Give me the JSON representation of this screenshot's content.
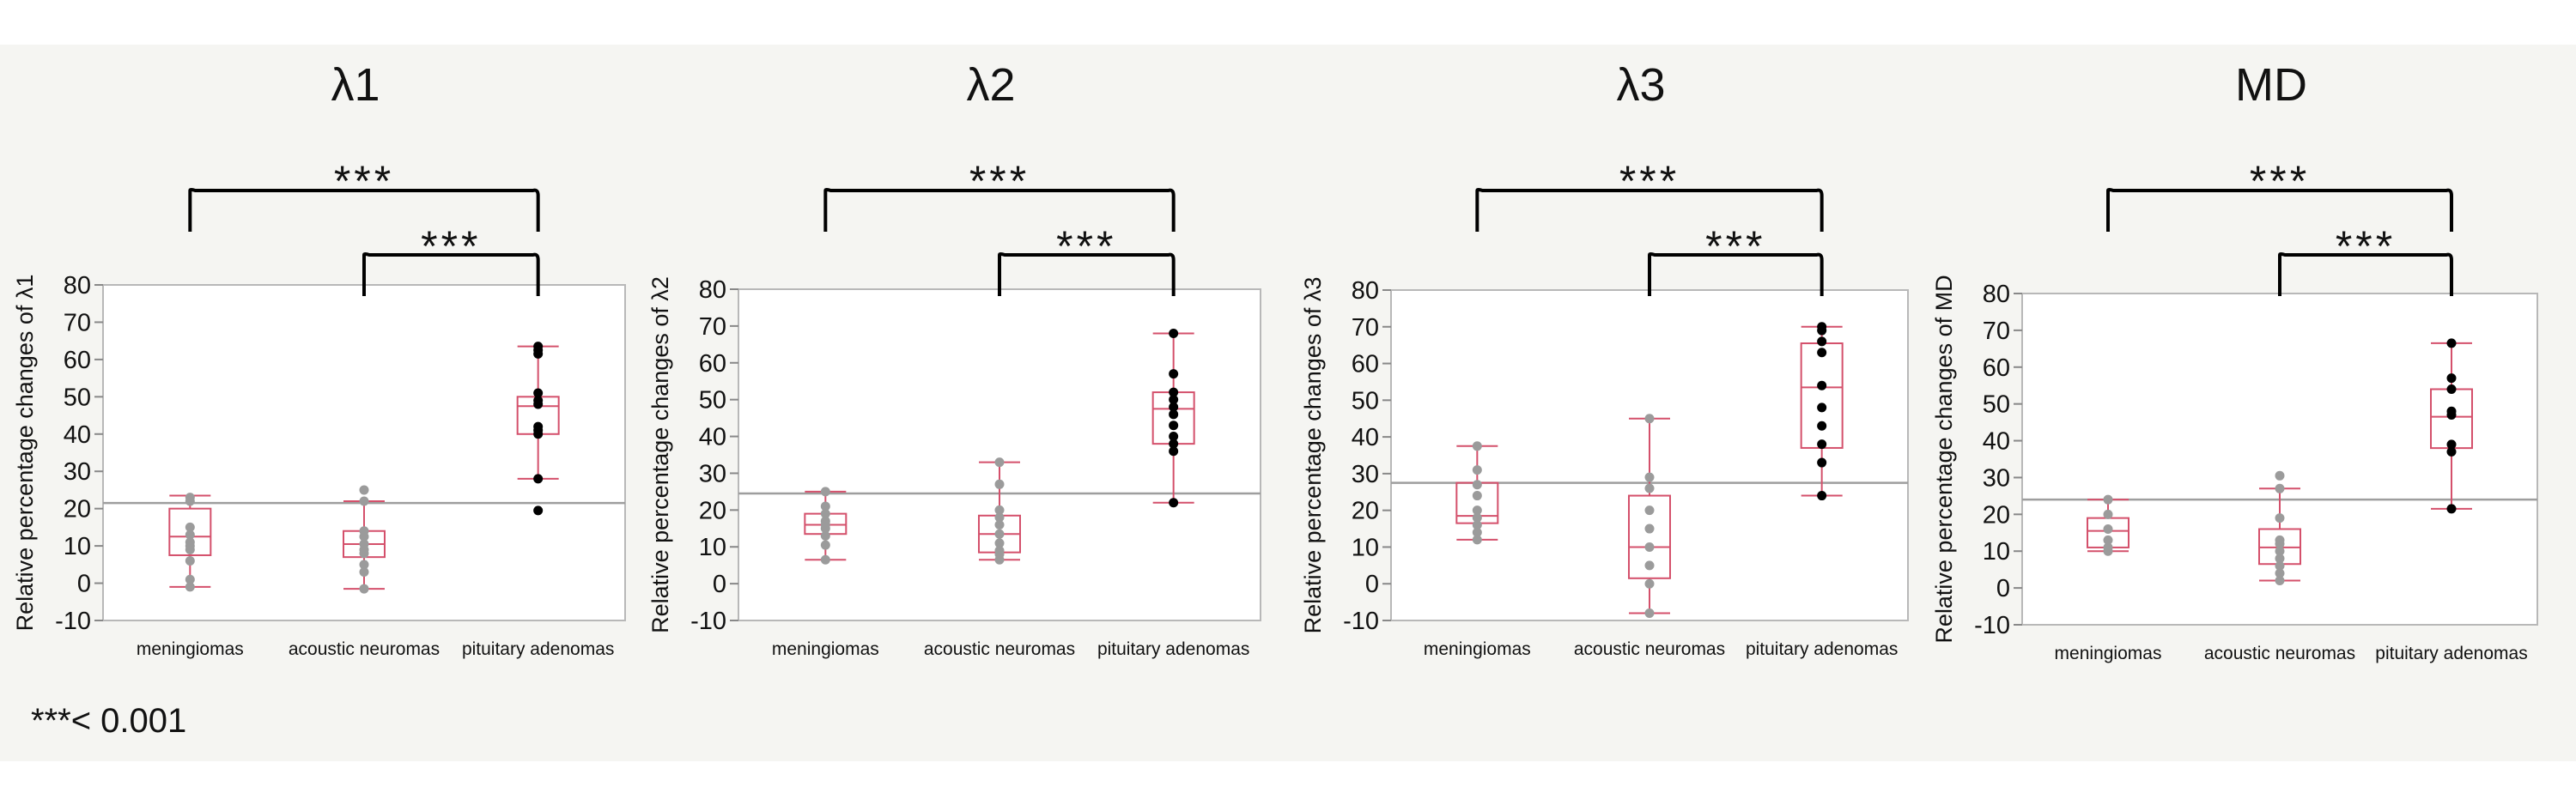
{
  "footnote": "***< 0.001",
  "colors": {
    "box": "#d4506b",
    "point_low": "#9b9b9b",
    "point_high": "#000000",
    "mean_line": "#9e9e9e",
    "bracket": "#000000"
  },
  "chart_data": [
    {
      "type": "box",
      "title": "λ1",
      "ylabel": "Relative percentage changes of λ1",
      "categories": [
        "meningiomas",
        "acoustic neuromas",
        "pituitary adenomas"
      ],
      "ylim": [
        -10,
        80
      ],
      "yticks": [
        -10,
        0,
        10,
        20,
        30,
        40,
        50,
        60,
        70,
        80
      ],
      "reference_line": 21.5,
      "boxes": [
        {
          "min": -1,
          "q1": 7.5,
          "median": 12.5,
          "q3": 20,
          "max": 23.5,
          "points": [
            23,
            22,
            15,
            13,
            11,
            10,
            9,
            6,
            1,
            -1
          ]
        },
        {
          "min": -1.5,
          "q1": 7,
          "median": 10.5,
          "q3": 14,
          "max": 22,
          "points": [
            25,
            22,
            14,
            12.5,
            10.5,
            9,
            8,
            5,
            3,
            -1.5
          ]
        },
        {
          "min": 28,
          "q1": 40,
          "median": 47.5,
          "q3": 50,
          "max": 63.5,
          "points": [
            63.5,
            62.5,
            61.5,
            51,
            49,
            48,
            42,
            41,
            40,
            28,
            19.5
          ]
        }
      ],
      "significance": [
        {
          "from": 0,
          "to": 2,
          "label": "***"
        },
        {
          "from": 1,
          "to": 2,
          "label": "***"
        }
      ]
    },
    {
      "type": "box",
      "title": "λ2",
      "ylabel": "Relative percentage changes of λ2",
      "categories": [
        "meningiomas",
        "acoustic neuromas",
        "pituitary adenomas"
      ],
      "ylim": [
        -10,
        80
      ],
      "yticks": [
        -10,
        0,
        10,
        20,
        30,
        40,
        50,
        60,
        70,
        80
      ],
      "reference_line": 24.5,
      "boxes": [
        {
          "min": 6.5,
          "q1": 13.5,
          "median": 16,
          "q3": 19,
          "max": 25,
          "points": [
            25,
            21,
            19,
            17,
            16,
            15,
            13,
            10.5,
            6.5
          ]
        },
        {
          "min": 6.5,
          "q1": 8.5,
          "median": 13.5,
          "q3": 18.5,
          "max": 33,
          "points": [
            33,
            27,
            20,
            18,
            16,
            13.5,
            11,
            9,
            8,
            6.5
          ]
        },
        {
          "min": 22,
          "q1": 38,
          "median": 47.5,
          "q3": 52,
          "max": 68,
          "points": [
            68,
            57,
            52,
            50,
            48,
            46,
            43,
            40,
            38,
            36,
            22
          ]
        }
      ],
      "significance": [
        {
          "from": 0,
          "to": 2,
          "label": "***"
        },
        {
          "from": 1,
          "to": 2,
          "label": "***"
        }
      ]
    },
    {
      "type": "box",
      "title": "λ3",
      "ylabel": "Relative percentage changes of λ3",
      "categories": [
        "meningiomas",
        "acoustic neuromas",
        "pituitary adenomas"
      ],
      "ylim": [
        -10,
        80
      ],
      "yticks": [
        -10,
        0,
        10,
        20,
        30,
        40,
        50,
        60,
        70,
        80
      ],
      "reference_line": 27.5,
      "boxes": [
        {
          "min": 12,
          "q1": 16.5,
          "median": 18.5,
          "q3": 27.5,
          "max": 37.5,
          "points": [
            37.5,
            31,
            27,
            24,
            20,
            18,
            16,
            14,
            12
          ]
        },
        {
          "min": -8,
          "q1": 1.5,
          "median": 10,
          "q3": 24,
          "max": 45,
          "points": [
            45,
            29,
            26,
            20,
            15,
            10,
            5,
            0,
            -8
          ]
        },
        {
          "min": 24,
          "q1": 37,
          "median": 53.5,
          "q3": 65.5,
          "max": 70,
          "points": [
            70,
            69,
            66,
            63,
            54,
            48,
            43,
            38,
            33,
            24
          ]
        }
      ],
      "significance": [
        {
          "from": 0,
          "to": 2,
          "label": "***"
        },
        {
          "from": 1,
          "to": 2,
          "label": "***"
        }
      ]
    },
    {
      "type": "box",
      "title": "MD",
      "ylabel": "Relative percentage changes of MD",
      "categories": [
        "meningiomas",
        "acoustic neuromas",
        "pituitary adenomas"
      ],
      "ylim": [
        -10,
        80
      ],
      "yticks": [
        -10,
        0,
        10,
        20,
        30,
        40,
        50,
        60,
        70,
        80
      ],
      "reference_line": 24,
      "boxes": [
        {
          "min": 10,
          "q1": 11,
          "median": 15.5,
          "q3": 19,
          "max": 24,
          "points": [
            24,
            20,
            16,
            13,
            11,
            10
          ]
        },
        {
          "min": 2,
          "q1": 6.5,
          "median": 11,
          "q3": 16,
          "max": 27,
          "points": [
            30.5,
            27,
            19,
            13,
            12,
            10,
            8,
            6,
            4,
            2
          ]
        },
        {
          "min": 21.5,
          "q1": 38,
          "median": 46.5,
          "q3": 54,
          "max": 66.5,
          "points": [
            66.5,
            57,
            54,
            48,
            47,
            39,
            37,
            21.5
          ]
        }
      ],
      "significance": [
        {
          "from": 0,
          "to": 2,
          "label": "***"
        },
        {
          "from": 1,
          "to": 2,
          "label": "***"
        }
      ]
    }
  ]
}
